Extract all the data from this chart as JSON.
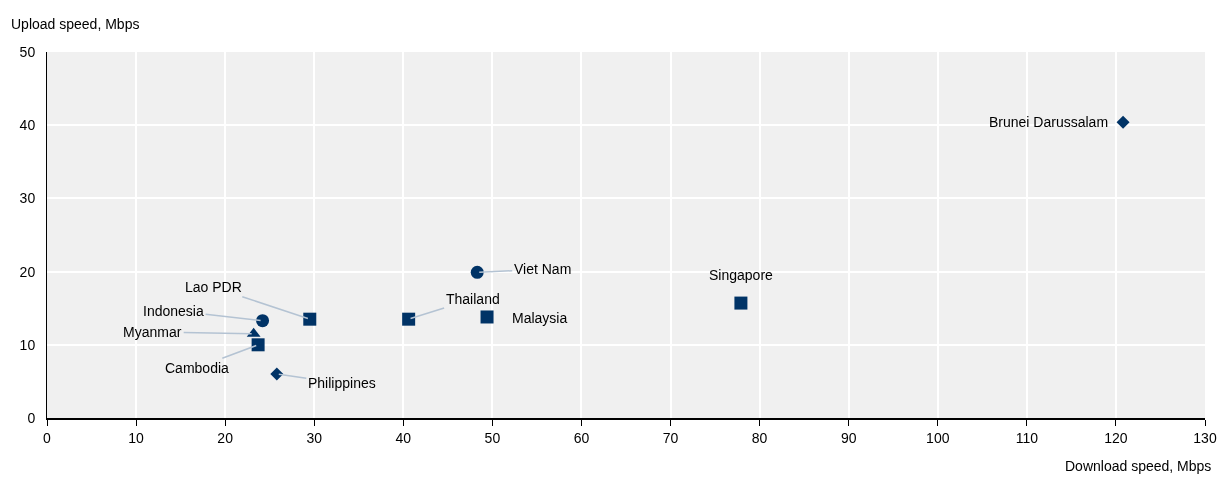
{
  "chart_data": {
    "type": "scatter",
    "xlabel": "Download speed, Mbps",
    "ylabel": "Upload speed, Mbps",
    "series": [
      {
        "color": "#003366",
        "marker": "diamond",
        "x": [
          120.8,
          25.8
        ],
        "values": [
          40.4,
          6.0
        ]
      },
      {
        "color": "#003366",
        "marker": "square",
        "x": [
          77.9,
          49.4,
          40.6,
          29.5,
          23.7
        ],
        "values": [
          15.7,
          13.8,
          13.5,
          13.5,
          10.0
        ]
      },
      {
        "color": "#003366",
        "marker": "circle",
        "x": [
          48.3,
          24.2
        ],
        "values": [
          19.9,
          13.3
        ]
      },
      {
        "color": "#003366",
        "marker": "triangle",
        "x": [
          23.2
        ],
        "values": [
          11.5
        ]
      }
    ],
    "annotations": [
      {
        "text": "Brunei Darussalam",
        "x": 120.8,
        "y": 40.4
      },
      {
        "text": "Singapore",
        "x": 77.9,
        "y": 15.7
      },
      {
        "text": "Viet Nam",
        "x": 48.3,
        "y": 19.9
      },
      {
        "text": "Malaysia",
        "x": 49.4,
        "y": 13.8
      },
      {
        "text": "Thailand",
        "x": 40.6,
        "y": 13.5
      },
      {
        "text": "Lao PDR",
        "x": 29.5,
        "y": 13.5
      },
      {
        "text": "Indonesia",
        "x": 24.2,
        "y": 13.3
      },
      {
        "text": "Myanmar",
        "x": 23.2,
        "y": 11.5
      },
      {
        "text": "Cambodia",
        "x": 23.7,
        "y": 10.0
      },
      {
        "text": "Philippines",
        "x": 25.8,
        "y": 6.0
      }
    ],
    "xlim": [
      0,
      130
    ],
    "xticks": [
      0,
      10,
      20,
      30,
      40,
      50,
      60,
      70,
      80,
      90,
      100,
      110,
      120,
      130
    ],
    "ylim": [
      0,
      50
    ],
    "yticks": [
      0,
      10,
      20,
      30,
      40,
      50
    ],
    "grid": true
  }
}
